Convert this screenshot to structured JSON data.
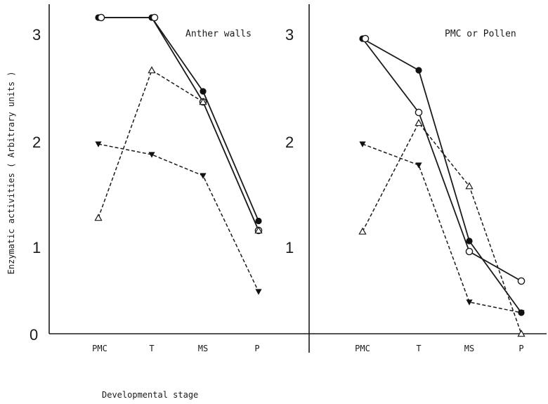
{
  "chart_data": {
    "type": "line",
    "xlabel": "Developmental stage",
    "ylabel": "Enzymatic activities ( Arbitrary units )",
    "categories": [
      "PMC",
      "T",
      "MS",
      "P"
    ],
    "ylim": [
      0,
      3
    ],
    "yticks": [
      "0",
      "1",
      "2",
      "3"
    ],
    "grid": false,
    "panels": [
      {
        "title": "Anther walls",
        "series": [
          {
            "marker": "filled-circle",
            "line": "solid",
            "values": [
              3.0,
              3.0,
              2.3,
              1.07
            ]
          },
          {
            "marker": "open-circle",
            "line": "solid",
            "values": [
              3.0,
              3.0,
              2.2,
              0.98
            ]
          },
          {
            "marker": "open-triangle",
            "line": "dashed",
            "values": [
              1.1,
              2.5,
              2.2,
              0.98
            ]
          },
          {
            "marker": "filled-triangle-down",
            "line": "dashed",
            "values": [
              1.8,
              1.7,
              1.5,
              0.4
            ]
          }
        ]
      },
      {
        "title": "PMC or Pollen",
        "series": [
          {
            "marker": "filled-circle",
            "line": "solid",
            "values": [
              2.8,
              2.5,
              0.88,
              0.2
            ]
          },
          {
            "marker": "open-circle",
            "line": "solid",
            "values": [
              2.8,
              2.1,
              0.78,
              0.5
            ]
          },
          {
            "marker": "open-triangle",
            "line": "dashed",
            "values": [
              0.97,
              2.0,
              1.4,
              0.0
            ]
          },
          {
            "marker": "filled-triangle-down",
            "line": "dashed",
            "values": [
              1.8,
              1.6,
              0.3,
              0.2
            ]
          }
        ]
      }
    ]
  }
}
